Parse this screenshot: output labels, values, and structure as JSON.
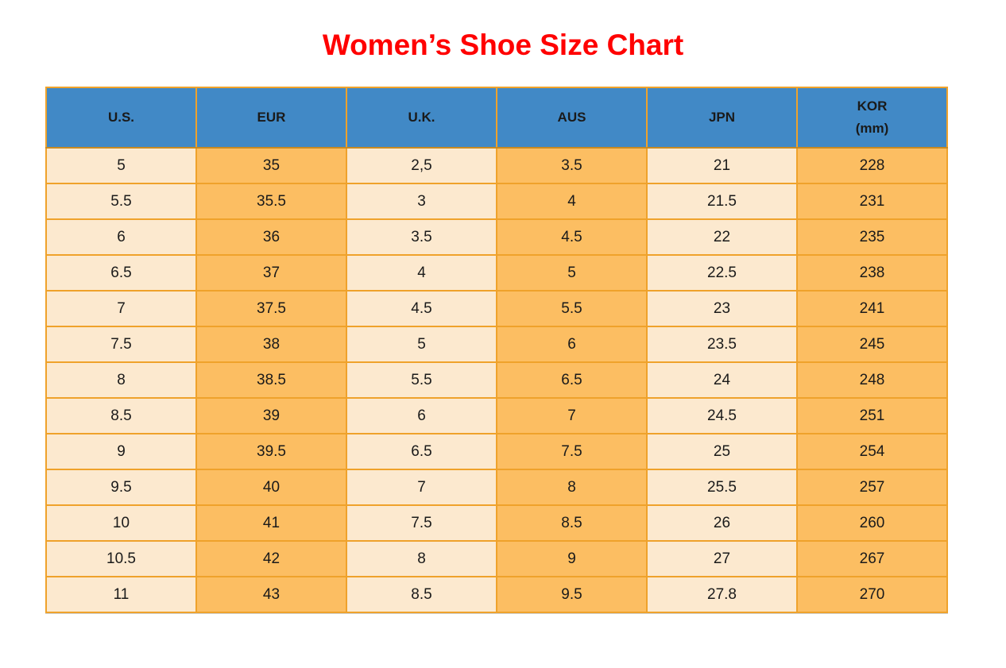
{
  "title": "Women’s Shoe Size Chart",
  "chart_data": {
    "type": "table",
    "title": "Women’s Shoe Size Chart",
    "columns": [
      "U.S.",
      "EUR",
      "U.K.",
      "AUS",
      "JPN",
      "KOR\n(mm)"
    ],
    "rows": [
      [
        "5",
        "35",
        "2,5",
        "3.5",
        "21",
        "228"
      ],
      [
        "5.5",
        "35.5",
        "3",
        "4",
        "21.5",
        "231"
      ],
      [
        "6",
        "36",
        "3.5",
        "4.5",
        "22",
        "235"
      ],
      [
        "6.5",
        "37",
        "4",
        "5",
        "22.5",
        "238"
      ],
      [
        "7",
        "37.5",
        "4.5",
        "5.5",
        "23",
        "241"
      ],
      [
        "7.5",
        "38",
        "5",
        "6",
        "23.5",
        "245"
      ],
      [
        "8",
        "38.5",
        "5.5",
        "6.5",
        "24",
        "248"
      ],
      [
        "8.5",
        "39",
        "6",
        "7",
        "24.5",
        "251"
      ],
      [
        "9",
        "39.5",
        "6.5",
        "7.5",
        "25",
        "254"
      ],
      [
        "9.5",
        "40",
        "7",
        "8",
        "25.5",
        "257"
      ],
      [
        "10",
        "41",
        "7.5",
        "8.5",
        "26",
        "260"
      ],
      [
        "10.5",
        "42",
        "8",
        "9",
        "27",
        "267"
      ],
      [
        "11",
        "43",
        "8.5",
        "9.5",
        "27.8",
        "270"
      ]
    ],
    "layout": {
      "grid": "on",
      "column_fill_pattern": [
        "light",
        "dark",
        "light",
        "dark",
        "light",
        "dark"
      ]
    }
  },
  "colors": {
    "title": "#FF0000",
    "header_bg": "#4189C6",
    "column_light": "#FCE9CF",
    "column_dark": "#FCBE62",
    "grid_border": "#EFA22B",
    "text": "#1A1A1A"
  }
}
